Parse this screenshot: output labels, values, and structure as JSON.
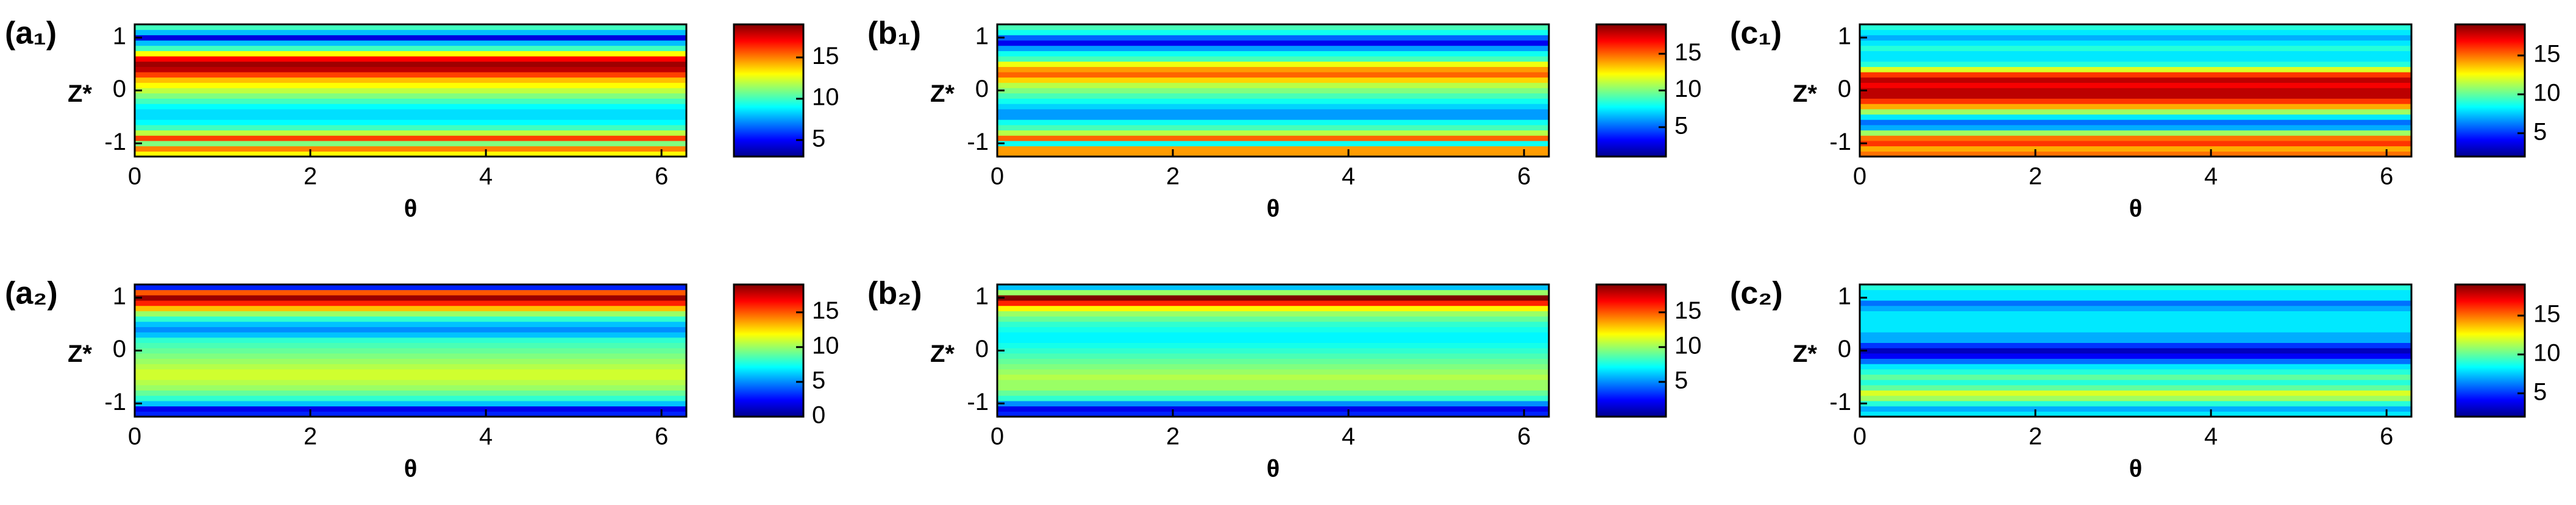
{
  "chart_data": [
    {
      "type": "heatmap",
      "label": "(a₁)",
      "xlabel": "θ",
      "ylabel": "Z*",
      "xlim": [
        0,
        6.2832
      ],
      "xticks": [
        0,
        2,
        4,
        6
      ],
      "ylim": [
        -1.25,
        1.25
      ],
      "yticks": [
        -1,
        0,
        1
      ],
      "z": [
        -1.2,
        -1.1,
        -1.0,
        -0.9,
        -0.8,
        -0.7,
        -0.6,
        -0.5,
        -0.4,
        -0.3,
        -0.2,
        -0.1,
        0,
        0.1,
        0.2,
        0.3,
        0.4,
        0.5,
        0.6,
        0.7,
        0.8,
        0.9,
        1.0,
        1.1,
        1.2
      ],
      "values": [
        13,
        15,
        11,
        16,
        12,
        10,
        9,
        8.5,
        8.5,
        9,
        10,
        11,
        12,
        13,
        14,
        16,
        18,
        18.5,
        17,
        13,
        10,
        8,
        4.5,
        8,
        10
      ],
      "clim": [
        3,
        19
      ],
      "cticks": [
        5,
        10,
        15
      ]
    },
    {
      "type": "heatmap",
      "label": "(b₁)",
      "xlabel": "θ",
      "ylabel": "Z*",
      "xlim": [
        0,
        6.2832
      ],
      "xticks": [
        0,
        2,
        4,
        6
      ],
      "ylim": [
        -1.25,
        1.25
      ],
      "yticks": [
        -1,
        0,
        1
      ],
      "z": [
        -1.2,
        -1.1,
        -1.0,
        -0.9,
        -0.8,
        -0.7,
        -0.6,
        -0.5,
        -0.4,
        -0.3,
        -0.2,
        -0.1,
        0,
        0.1,
        0.2,
        0.3,
        0.4,
        0.5,
        0.6,
        0.7,
        0.8,
        0.9,
        1.0,
        1.1,
        1.2
      ],
      "values": [
        14,
        14,
        8,
        15,
        11,
        9,
        8,
        6,
        6,
        7,
        8,
        9,
        10,
        11,
        13,
        15,
        14,
        12,
        9,
        8,
        6,
        3,
        5,
        8,
        9
      ],
      "clim": [
        1,
        19
      ],
      "cticks": [
        5,
        10,
        15
      ]
    },
    {
      "type": "heatmap",
      "label": "(c₁)",
      "xlabel": "θ",
      "ylabel": "Z*",
      "xlim": [
        0,
        6.2832
      ],
      "xticks": [
        0,
        2,
        4,
        6
      ],
      "ylim": [
        -1.25,
        1.25
      ],
      "yticks": [
        -1,
        0,
        1
      ],
      "z": [
        -1.2,
        -1.1,
        -1.0,
        -0.9,
        -0.8,
        -0.7,
        -0.6,
        -0.5,
        -0.4,
        -0.3,
        -0.2,
        -0.1,
        0,
        0.1,
        0.2,
        0.3,
        0.4,
        0.5,
        0.6,
        0.7,
        0.8,
        0.9,
        1.0,
        1.1,
        1.2
      ],
      "values": [
        15,
        14,
        16,
        15,
        11,
        7,
        6,
        8,
        11,
        14,
        16,
        18,
        18,
        17,
        18,
        16,
        12,
        9,
        8,
        8,
        9,
        8,
        7,
        8,
        9
      ],
      "clim": [
        2,
        19
      ],
      "cticks": [
        5,
        10,
        15
      ]
    },
    {
      "type": "heatmap",
      "label": "(a₂)",
      "xlabel": "θ",
      "ylabel": "Z*",
      "xlim": [
        0,
        6.2832
      ],
      "xticks": [
        0,
        2,
        4,
        6
      ],
      "ylim": [
        -1.25,
        1.25
      ],
      "yticks": [
        -1,
        0,
        1
      ],
      "z": [
        -1.2,
        -1.1,
        -1.0,
        -0.9,
        -0.8,
        -0.7,
        -0.6,
        -0.5,
        -0.4,
        -0.3,
        -0.2,
        -0.1,
        0,
        0.1,
        0.2,
        0.3,
        0.4,
        0.5,
        0.6,
        0.7,
        0.8,
        0.9,
        1.0,
        1.1,
        1.2
      ],
      "values": [
        3,
        2,
        6,
        8,
        9,
        10,
        10.5,
        11,
        11,
        10.5,
        10,
        9.5,
        9,
        8.5,
        8,
        6,
        5,
        6,
        8,
        10,
        13,
        16,
        18.5,
        15,
        3
      ],
      "clim": [
        0,
        19
      ],
      "cticks": [
        0,
        5,
        10,
        15
      ]
    },
    {
      "type": "heatmap",
      "label": "(b₂)",
      "xlabel": "θ",
      "ylabel": "Z*",
      "xlim": [
        0,
        6.2832
      ],
      "xticks": [
        0,
        2,
        4,
        6
      ],
      "ylim": [
        -1.25,
        1.25
      ],
      "yticks": [
        -1,
        0,
        1
      ],
      "z": [
        -1.2,
        -1.1,
        -1.0,
        -0.9,
        -0.8,
        -0.7,
        -0.6,
        -0.5,
        -0.4,
        -0.3,
        -0.2,
        -0.1,
        0,
        0.1,
        0.2,
        0.3,
        0.4,
        0.5,
        0.6,
        0.7,
        0.8,
        0.9,
        1.0,
        1.1,
        1.2
      ],
      "values": [
        3,
        2,
        5,
        8,
        9,
        10,
        10,
        10.5,
        10,
        9.5,
        9,
        8.5,
        8,
        7.5,
        7,
        7,
        7.5,
        8,
        9,
        10,
        12,
        16,
        19,
        10,
        6
      ],
      "clim": [
        0,
        19
      ],
      "cticks": [
        5,
        10,
        15
      ]
    },
    {
      "type": "heatmap",
      "label": "(c₂)",
      "xlabel": "θ",
      "ylabel": "Z*",
      "xlim": [
        0,
        6.2832
      ],
      "xticks": [
        0,
        2,
        4,
        6
      ],
      "ylim": [
        -1.25,
        1.25
      ],
      "yticks": [
        -1,
        0,
        1
      ],
      "z": [
        -1.2,
        -1.1,
        -1.0,
        -0.9,
        -0.8,
        -0.7,
        -0.6,
        -0.5,
        -0.4,
        -0.3,
        -0.2,
        -0.1,
        0,
        0.1,
        0.2,
        0.3,
        0.4,
        0.5,
        0.6,
        0.7,
        0.8,
        0.9,
        1.0,
        1.1,
        1.2
      ],
      "values": [
        8,
        7,
        9,
        11,
        12,
        10,
        9,
        10,
        9,
        8,
        6,
        4,
        3,
        5,
        7,
        7,
        8,
        8,
        8,
        8,
        7,
        6,
        8,
        8,
        9
      ],
      "clim": [
        2,
        19
      ],
      "cticks": [
        5,
        10,
        15
      ]
    }
  ]
}
